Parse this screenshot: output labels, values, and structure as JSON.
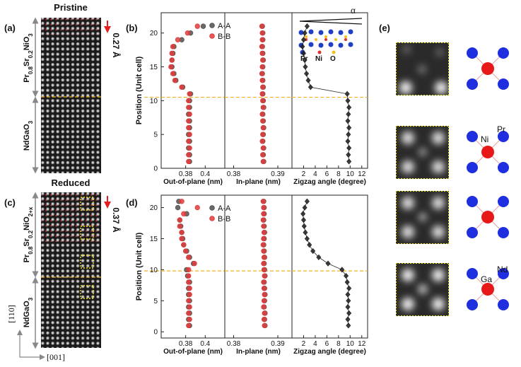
{
  "panels": {
    "a": {
      "label": "(a)",
      "title": "Pristine",
      "film": [
        "Pr",
        "0.8",
        "Sr",
        "0.2",
        "NiO",
        "3"
      ],
      "substrate": [
        "NdGaO",
        "3"
      ],
      "shift": "0.27 Å"
    },
    "b": {
      "label": "(b)"
    },
    "c": {
      "label": "(c)",
      "title": "Reduced",
      "film": [
        "Pr",
        "0.8",
        "Sr",
        "0.2",
        "NiO",
        "2+x"
      ],
      "substrate": [
        "NdGaO",
        "3"
      ],
      "shift": "0.37 Å"
    },
    "d": {
      "label": "(d)"
    },
    "e": {
      "label": "(e)",
      "annotations": [
        "Pr",
        "Ni",
        "Nd",
        "Ga"
      ]
    },
    "axes": {
      "vertical": "[110]",
      "horizontal": "[001]"
    },
    "inset": {
      "angle": "α",
      "atoms": [
        "Pr",
        "Ni",
        "O"
      ]
    }
  },
  "chart_data": [
    {
      "type": "scatter",
      "orientation": "horizontal",
      "ylabel": "Position (Unit cell)",
      "xlabel": "Out-of-plane (nm)",
      "y": [
        1,
        2,
        3,
        4,
        5,
        6,
        7,
        8,
        9,
        10,
        11,
        12,
        13,
        14,
        15,
        16,
        17,
        18,
        19,
        20,
        21
      ],
      "series": [
        {
          "name": "A-A",
          "color": "#505050",
          "values": [
            0.384,
            0.384,
            0.383,
            0.384,
            0.383,
            0.384,
            0.384,
            0.383,
            0.384,
            0.384,
            0.385,
            0.377,
            0.37,
            0.368,
            0.366,
            0.366,
            0.367,
            0.368,
            0.376,
            0.385,
            0.398
          ]
        },
        {
          "name": "B-B",
          "color": "#e03c3c",
          "values": [
            0.383,
            0.383,
            0.384,
            0.383,
            0.384,
            0.383,
            0.383,
            0.384,
            0.383,
            0.383,
            0.384,
            0.376,
            0.369,
            0.367,
            0.365,
            0.366,
            0.366,
            0.367,
            0.372,
            0.382,
            0.392
          ]
        }
      ],
      "xlim": [
        0.355,
        0.42
      ],
      "xticks": [
        0.38,
        0.4
      ],
      "ylim": [
        0,
        23
      ],
      "yticks": [
        0,
        5,
        10,
        15,
        20
      ],
      "hline": 10.5,
      "legend": "upper right"
    },
    {
      "type": "scatter",
      "orientation": "horizontal",
      "xlabel": "In-plane (nm)",
      "y": [
        1,
        2,
        3,
        4,
        5,
        6,
        7,
        8,
        9,
        10,
        11,
        12,
        13,
        14,
        15,
        16,
        17,
        18,
        19,
        20,
        21
      ],
      "series": [
        {
          "color": "#505050",
          "values": [
            0.3868,
            0.3867,
            0.3868,
            0.3866,
            0.3867,
            0.3868,
            0.3867,
            0.3866,
            0.3868,
            0.3867,
            0.3866,
            0.3867,
            0.3866,
            0.3865,
            0.3866,
            0.3867,
            0.3866,
            0.3865,
            0.3866,
            0.3866,
            0.3865
          ]
        },
        {
          "color": "#e03c3c",
          "values": [
            0.3867,
            0.3866,
            0.3867,
            0.3865,
            0.3866,
            0.3867,
            0.3866,
            0.3865,
            0.3867,
            0.3866,
            0.3865,
            0.3866,
            0.3865,
            0.3864,
            0.3865,
            0.3866,
            0.3865,
            0.3864,
            0.3865,
            0.3865,
            0.3864
          ]
        }
      ],
      "xlim": [
        0.378,
        0.3932
      ],
      "xticks": [
        0.38,
        0.39
      ],
      "ylim": [
        0,
        23
      ],
      "hline": 10.5
    },
    {
      "type": "scatter",
      "orientation": "horizontal",
      "xlabel": "Zigzag angle (degree)",
      "line": true,
      "marker": "diamond",
      "y": [
        1,
        2,
        3,
        4,
        5,
        6,
        7,
        8,
        9,
        10,
        11,
        12,
        13,
        14,
        15,
        16,
        17,
        18,
        19,
        20,
        21
      ],
      "series": [
        {
          "color": "#222222",
          "values": [
            9.8,
            9.7,
            9.8,
            9.6,
            9.7,
            9.8,
            9.6,
            9.7,
            9.8,
            9.6,
            9.5,
            3.2,
            2.8,
            2.5,
            2.3,
            2.2,
            2.0,
            1.8,
            2.0,
            2.2,
            2.6
          ]
        }
      ],
      "xlim": [
        0,
        13
      ],
      "xticks": [
        2,
        4,
        6,
        8,
        10,
        12
      ],
      "ylim": [
        0,
        23
      ],
      "hline": 10.5
    },
    {
      "type": "scatter",
      "orientation": "horizontal",
      "ylabel": "Position (Unit cell)",
      "xlabel": "Out-of-plane (nm)",
      "y": [
        1,
        2,
        3,
        4,
        5,
        6,
        7,
        8,
        9,
        10,
        11,
        12,
        13,
        14,
        15,
        16,
        17,
        18,
        19,
        20,
        21
      ],
      "series": [
        {
          "name": "A-A",
          "color": "#505050",
          "values": [
            0.384,
            0.383,
            0.384,
            0.383,
            0.384,
            0.383,
            0.383,
            0.384,
            0.382,
            0.381,
            0.388,
            0.384,
            0.381,
            0.378,
            0.377,
            0.376,
            0.375,
            0.374,
            0.381,
            0.372,
            0.373
          ]
        },
        {
          "name": "B-B",
          "color": "#e03c3c",
          "values": [
            0.383,
            0.384,
            0.383,
            0.384,
            0.383,
            0.384,
            0.384,
            0.383,
            0.383,
            0.383,
            0.389,
            0.383,
            0.38,
            0.378,
            0.376,
            0.376,
            0.374,
            0.374,
            0.378,
            0.392,
            0.376
          ]
        }
      ],
      "xlim": [
        0.355,
        0.42
      ],
      "xticks": [
        0.38,
        0.4
      ],
      "ylim": [
        -1,
        22
      ],
      "yticks": [
        0,
        5,
        10,
        15,
        20
      ],
      "hline": 9.8,
      "legend": "upper right"
    },
    {
      "type": "scatter",
      "orientation": "horizontal",
      "xlabel": "In-plane (nm)",
      "y": [
        1,
        2,
        3,
        4,
        5,
        6,
        7,
        8,
        9,
        10,
        11,
        12,
        13,
        14,
        15,
        16,
        17,
        18,
        19,
        20,
        21
      ],
      "series": [
        {
          "color": "#505050",
          "values": [
            0.3871,
            0.387,
            0.3871,
            0.3869,
            0.387,
            0.3871,
            0.387,
            0.3869,
            0.3871,
            0.387,
            0.3869,
            0.387,
            0.3869,
            0.3868,
            0.3869,
            0.387,
            0.3869,
            0.3868,
            0.3869,
            0.3869,
            0.3868
          ]
        },
        {
          "color": "#e03c3c",
          "values": [
            0.387,
            0.3869,
            0.387,
            0.3868,
            0.3869,
            0.387,
            0.3869,
            0.3868,
            0.387,
            0.3869,
            0.3868,
            0.3869,
            0.3868,
            0.3867,
            0.3868,
            0.3869,
            0.3868,
            0.3867,
            0.3868,
            0.3868,
            0.3867
          ]
        }
      ],
      "xlim": [
        0.378,
        0.3932
      ],
      "xticks": [
        0.38,
        0.39
      ],
      "ylim": [
        -1,
        22
      ],
      "hline": 9.8
    },
    {
      "type": "scatter",
      "orientation": "horizontal",
      "xlabel": "Zigzag angle (degree)",
      "line": true,
      "marker": "diamond",
      "y": [
        1,
        2,
        3,
        4,
        5,
        6,
        7,
        8,
        9,
        10,
        11,
        12,
        13,
        14,
        15,
        16,
        17,
        18,
        19,
        20,
        21
      ],
      "series": [
        {
          "color": "#222222",
          "values": [
            9.7,
            9.6,
            9.8,
            9.6,
            9.7,
            9.6,
            9.8,
            9.5,
            9.3,
            8.6,
            6.2,
            4.6,
            3.6,
            3.0,
            2.6,
            2.3,
            2.1,
            2.0,
            1.9,
            2.2,
            2.6
          ]
        }
      ],
      "xlim": [
        0,
        13
      ],
      "xticks": [
        2,
        4,
        6,
        8,
        10,
        12
      ],
      "ylim": [
        -1,
        22
      ],
      "hline": 9.8
    }
  ]
}
